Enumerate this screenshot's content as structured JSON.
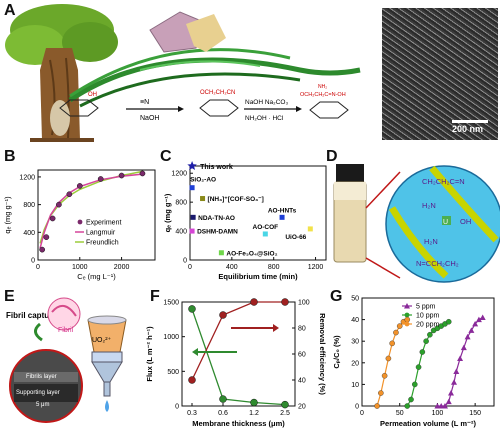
{
  "panels": {
    "A": {
      "label": "A",
      "reagent_1": "NaOH",
      "reagent_2a": "NaOH Na₂CO₃",
      "reagent_2b": "NH₂OH · HCl",
      "sub_ch2ch2cn": "OCH₂CH₂CN",
      "sub_nh2": "NH₂",
      "sub_amidoxime": "OCH₂CH₂C=N-OH",
      "scale_bar": "200 nm"
    },
    "B": {
      "label": "B"
    },
    "C": {
      "label": "C"
    },
    "D": {
      "label": "D",
      "diagram": {
        "top_group": "CH₂CH₂C=N",
        "top_nh2": "H₂N",
        "center_metal": "U",
        "bottom_nh2": "H₂N",
        "bottom_group": "N=CCH₂CH₂",
        "oh": "OH"
      }
    },
    "E": {
      "label": "E",
      "fibril_capture": "Fibril capture",
      "fibril": "Fibril",
      "uranyl": "UO₂²⁺",
      "fibrils_layer": "Fibrils layer",
      "supporting_layer": "Supporting layer",
      "scale": "5 μm"
    },
    "F": {
      "label": "F"
    },
    "G": {
      "label": "G"
    }
  },
  "chart_data": [
    {
      "panel": "B",
      "type": "scatter",
      "xlabel": "Cₑ (mg L⁻¹)",
      "ylabel": "qₑ (mg g⁻¹)",
      "xlim": [
        0,
        2800
      ],
      "ylim": [
        0,
        1300
      ],
      "xticks": [
        0,
        1000,
        2000
      ],
      "yticks": [
        0,
        400,
        800,
        1200
      ],
      "legend": [
        "Experiment",
        "Langmuir",
        "Freundlich"
      ],
      "colors": {
        "experiment": "#7b2a6b",
        "langmuir": "#d6459b",
        "freundlich": "#9ccc3a"
      },
      "series": [
        {
          "name": "Experiment",
          "x": [
            100,
            200,
            350,
            500,
            750,
            1000,
            1500,
            2000,
            2500
          ],
          "y": [
            150,
            330,
            600,
            800,
            950,
            1070,
            1170,
            1220,
            1250
          ]
        },
        {
          "name": "Langmuir",
          "x": [
            50,
            150,
            300,
            500,
            750,
            1000,
            1500,
            2000,
            2500
          ],
          "y": [
            170,
            400,
            650,
            830,
            970,
            1060,
            1160,
            1210,
            1240
          ]
        },
        {
          "name": "Freundlich",
          "x": [
            50,
            150,
            300,
            500,
            750,
            1000,
            1500,
            2000,
            2500
          ],
          "y": [
            240,
            440,
            640,
            800,
            930,
            1020,
            1140,
            1220,
            1280
          ]
        }
      ]
    },
    {
      "panel": "C",
      "type": "scatter",
      "xlabel": "Equilibrium time (min)",
      "ylabel": "qₑ (mg g⁻¹)",
      "xlim": [
        0,
        1300
      ],
      "ylim": [
        0,
        1300
      ],
      "xticks": [
        0,
        400,
        800,
        1200
      ],
      "yticks": [
        0,
        400,
        800,
        1200
      ],
      "points": [
        {
          "label": "This work",
          "x": 20,
          "y": 1300,
          "color": "#1f1fa8",
          "marker": "star"
        },
        {
          "label": "SiO₂-AO",
          "x": 20,
          "y": 1000,
          "color": "#1f3fd6",
          "marker": "square"
        },
        {
          "label": "[NH₃]⁺[COF-SO₃⁻]",
          "x": 120,
          "y": 850,
          "color": "#8a8a1a",
          "marker": "square"
        },
        {
          "label": "NDA-TN-AO",
          "x": 30,
          "y": 590,
          "color": "#1a1a6e",
          "marker": "square"
        },
        {
          "label": "DSHM-DAMN",
          "x": 20,
          "y": 400,
          "color": "#d646d6",
          "marker": "square"
        },
        {
          "label": "AO-HNTs",
          "x": 880,
          "y": 590,
          "color": "#1f3fd6",
          "marker": "square"
        },
        {
          "label": "AO-COF",
          "x": 720,
          "y": 360,
          "color": "#4ad6e6",
          "marker": "square"
        },
        {
          "label": "UiO-66",
          "x": 1150,
          "y": 430,
          "color": "#f2e24a",
          "marker": "square"
        },
        {
          "label": "AO-Fe₃O₄@SiO₂",
          "x": 300,
          "y": 100,
          "color": "#6fd64a",
          "marker": "square"
        }
      ]
    },
    {
      "panel": "F",
      "type": "line",
      "xlabel": "Membrane thickness (μm)",
      "ylabel": "Flux (L m⁻² h⁻¹)",
      "ylabel_right": "Removal efficiency (%)",
      "x": [
        0.3,
        0.6,
        1.2,
        2.5
      ],
      "xticks": [
        "0.3",
        "0.6",
        "1.2",
        "2.5"
      ],
      "ylim": [
        0,
        1500
      ],
      "yticks": [
        0,
        500,
        1000,
        1500
      ],
      "ylim_right": [
        20,
        100
      ],
      "yticks_right": [
        20,
        40,
        60,
        80,
        100
      ],
      "colors": {
        "flux": "#2f8a2f",
        "removal": "#a02020"
      },
      "series": [
        {
          "name": "Flux",
          "axis": "left",
          "values": [
            1400,
            100,
            50,
            20
          ]
        },
        {
          "name": "Removal efficiency",
          "axis": "right",
          "values": [
            40,
            90,
            100,
            100
          ]
        }
      ]
    },
    {
      "panel": "G",
      "type": "line",
      "xlabel": "Permeation volume (L m⁻²)",
      "ylabel": "Cₚ/C₀ (%)",
      "xlim": [
        0,
        175
      ],
      "ylim": [
        0,
        50
      ],
      "xticks": [
        0,
        50,
        100,
        150
      ],
      "yticks": [
        0,
        10,
        20,
        30,
        40,
        50
      ],
      "legend_position": "top-left",
      "series": [
        {
          "name": "5 ppm",
          "color": "#8a2a9a",
          "marker": "triangle",
          "x": [
            100,
            105,
            110,
            115,
            118,
            122,
            125,
            130,
            135,
            140,
            145,
            150,
            155,
            160
          ],
          "y": [
            0,
            0,
            0,
            2,
            6,
            11,
            16,
            22,
            27,
            32,
            35,
            38,
            40,
            41
          ]
        },
        {
          "name": "10 ppm",
          "color": "#2ba02b",
          "marker": "circle",
          "x": [
            60,
            65,
            70,
            75,
            80,
            85,
            90,
            95,
            100,
            105,
            110,
            115
          ],
          "y": [
            0,
            3,
            10,
            18,
            25,
            30,
            33,
            35,
            36,
            37,
            38,
            39
          ]
        },
        {
          "name": "20 ppm",
          "color": "#f2922a",
          "marker": "circle",
          "x": [
            20,
            25,
            30,
            35,
            40,
            45,
            50,
            55,
            60
          ],
          "y": [
            0,
            6,
            14,
            22,
            29,
            34,
            37,
            39,
            40
          ]
        }
      ]
    }
  ]
}
